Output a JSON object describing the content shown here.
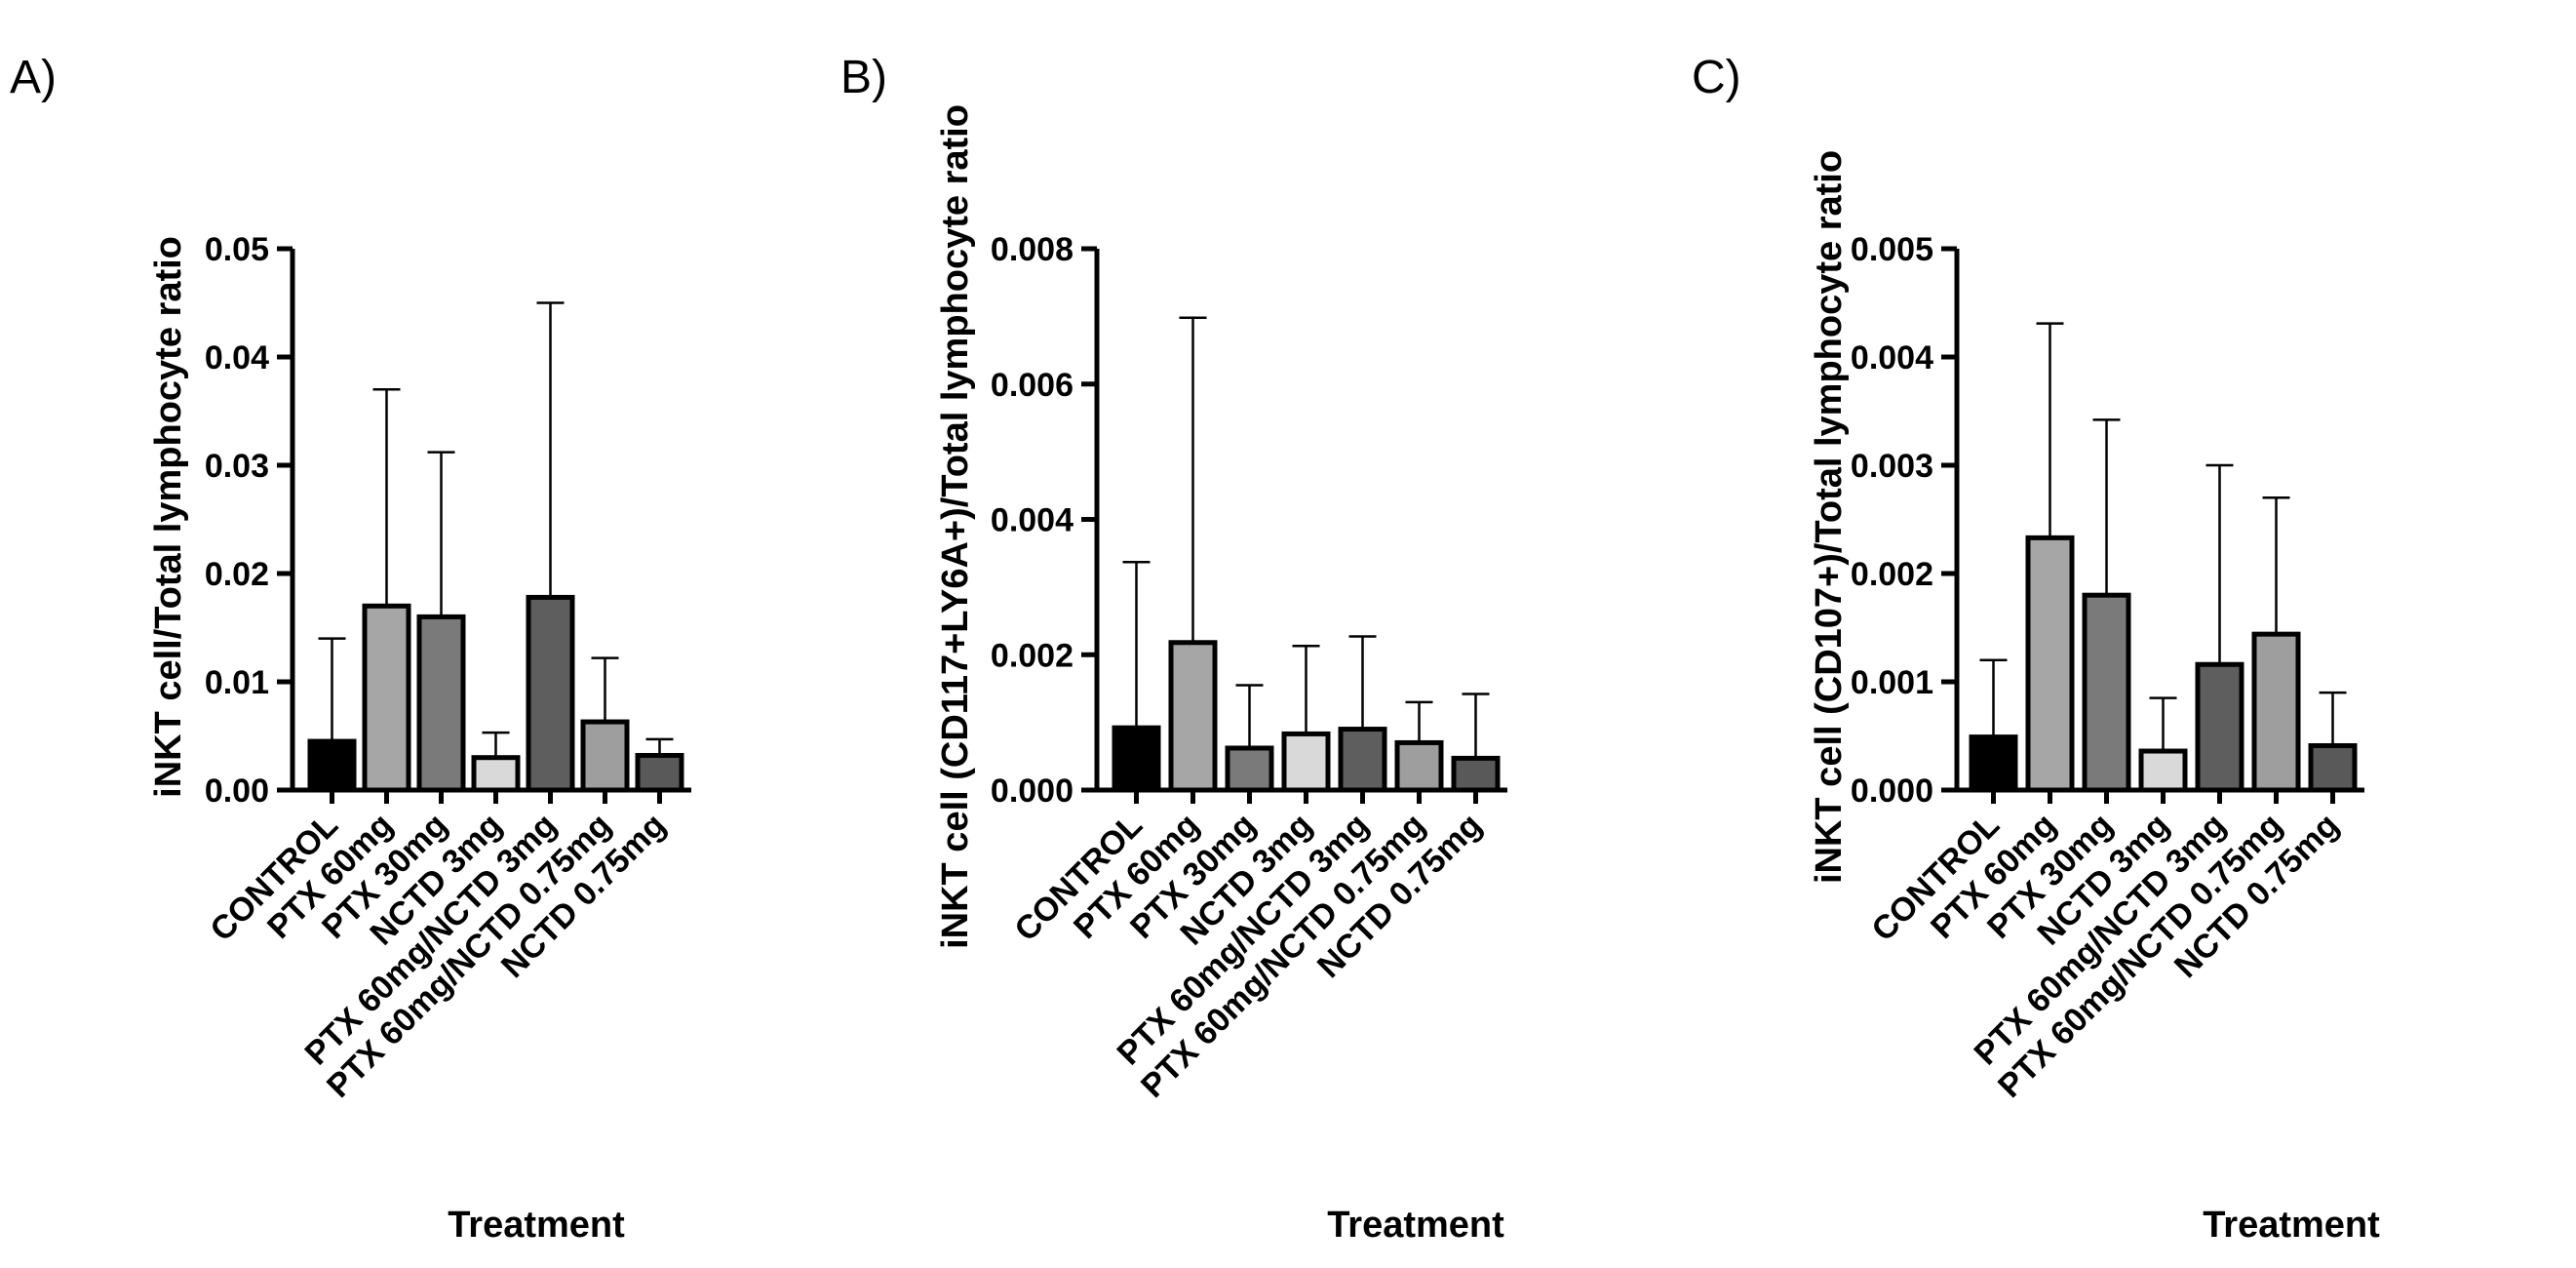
{
  "chart_data": [
    {
      "type": "bar",
      "panel_label": "A)",
      "categories": [
        "CONTROL",
        "PTX 60mg",
        "PTX 30mg",
        "NCTD 3mg",
        "PTX 60mg/NCTD 3mg",
        "PTX 60mg/NCTD 0.75mg",
        "NCTD 0.75mg"
      ],
      "values": [
        0.0045,
        0.017,
        0.016,
        0.003,
        0.0178,
        0.0063,
        0.0032
      ],
      "error_upper": [
        0.014,
        0.037,
        0.0312,
        0.0053,
        0.045,
        0.0122,
        0.0047
      ],
      "yticks": [
        "0.00",
        "0.01",
        "0.02",
        "0.03",
        "0.04",
        "0.05"
      ],
      "ylim": [
        0,
        0.05
      ],
      "xlabel": "Treatment",
      "ylabel": "iNKT cell/Total lymphocyte ratio"
    },
    {
      "type": "bar",
      "panel_label": "B)",
      "categories": [
        "CONTROL",
        "PTX 60mg",
        "PTX 30mg",
        "NCTD 3mg",
        "PTX 60mg/NCTD 3mg",
        "PTX 60mg/NCTD 0.75mg",
        "NCTD 0.75mg"
      ],
      "values": [
        0.00092,
        0.00218,
        0.00062,
        0.00083,
        0.0009,
        0.0007,
        0.00047
      ],
      "error_upper": [
        0.00337,
        0.00698,
        0.00155,
        0.00213,
        0.00227,
        0.0013,
        0.00142
      ],
      "yticks": [
        "0.000",
        "0.002",
        "0.004",
        "0.006",
        "0.008"
      ],
      "ylim": [
        0,
        0.008
      ],
      "xlabel": "Treatment",
      "ylabel": "iNKT cell (CD117+LY6A+)/Total lymphocyte ratio"
    },
    {
      "type": "bar",
      "panel_label": "C)",
      "categories": [
        "CONTROL",
        "PTX 60mg",
        "PTX 30mg",
        "NCTD 3mg",
        "PTX 60mg/NCTD 3mg",
        "PTX 60mg/NCTD 0.75mg",
        "NCTD 0.75mg"
      ],
      "values": [
        0.00049,
        0.00233,
        0.0018,
        0.00036,
        0.00116,
        0.00144,
        0.00041
      ],
      "error_upper": [
        0.0012,
        0.00431,
        0.00342,
        0.00085,
        0.003,
        0.0027,
        0.0009
      ],
      "yticks": [
        "0.000",
        "0.001",
        "0.002",
        "0.003",
        "0.004",
        "0.005"
      ],
      "ylim": [
        0,
        0.005
      ],
      "xlabel": "Treatment",
      "ylabel": "iNKT cell (CD107+)/Total lymphocyte ratio"
    }
  ],
  "colors": {
    "bar_fills": [
      "#000000",
      "#a6a6a6",
      "#7a7a7a",
      "#d9d9d9",
      "#5e5e5e",
      "#9e9e9e",
      "#595959"
    ],
    "axis": "#000000",
    "error_bar": "#000000"
  }
}
